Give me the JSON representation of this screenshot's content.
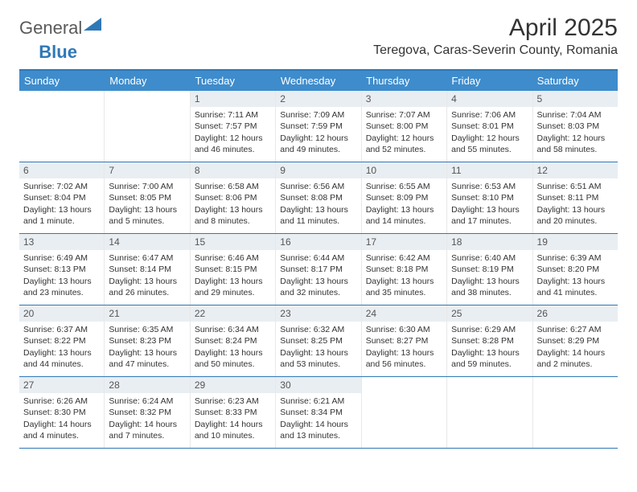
{
  "logo": {
    "text1": "General",
    "text2": "Blue"
  },
  "title": "April 2025",
  "location": "Teregova, Caras-Severin County, Romania",
  "colors": {
    "header_bar": "#3e8ccc",
    "border": "#2f78b7",
    "daynum_bg": "#e9eef2",
    "text": "#333333"
  },
  "weekdays": [
    "Sunday",
    "Monday",
    "Tuesday",
    "Wednesday",
    "Thursday",
    "Friday",
    "Saturday"
  ],
  "weeks": [
    [
      {
        "n": "",
        "sr": "",
        "ss": "",
        "dl": ""
      },
      {
        "n": "",
        "sr": "",
        "ss": "",
        "dl": ""
      },
      {
        "n": "1",
        "sr": "Sunrise: 7:11 AM",
        "ss": "Sunset: 7:57 PM",
        "dl": "Daylight: 12 hours and 46 minutes."
      },
      {
        "n": "2",
        "sr": "Sunrise: 7:09 AM",
        "ss": "Sunset: 7:59 PM",
        "dl": "Daylight: 12 hours and 49 minutes."
      },
      {
        "n": "3",
        "sr": "Sunrise: 7:07 AM",
        "ss": "Sunset: 8:00 PM",
        "dl": "Daylight: 12 hours and 52 minutes."
      },
      {
        "n": "4",
        "sr": "Sunrise: 7:06 AM",
        "ss": "Sunset: 8:01 PM",
        "dl": "Daylight: 12 hours and 55 minutes."
      },
      {
        "n": "5",
        "sr": "Sunrise: 7:04 AM",
        "ss": "Sunset: 8:03 PM",
        "dl": "Daylight: 12 hours and 58 minutes."
      }
    ],
    [
      {
        "n": "6",
        "sr": "Sunrise: 7:02 AM",
        "ss": "Sunset: 8:04 PM",
        "dl": "Daylight: 13 hours and 1 minute."
      },
      {
        "n": "7",
        "sr": "Sunrise: 7:00 AM",
        "ss": "Sunset: 8:05 PM",
        "dl": "Daylight: 13 hours and 5 minutes."
      },
      {
        "n": "8",
        "sr": "Sunrise: 6:58 AM",
        "ss": "Sunset: 8:06 PM",
        "dl": "Daylight: 13 hours and 8 minutes."
      },
      {
        "n": "9",
        "sr": "Sunrise: 6:56 AM",
        "ss": "Sunset: 8:08 PM",
        "dl": "Daylight: 13 hours and 11 minutes."
      },
      {
        "n": "10",
        "sr": "Sunrise: 6:55 AM",
        "ss": "Sunset: 8:09 PM",
        "dl": "Daylight: 13 hours and 14 minutes."
      },
      {
        "n": "11",
        "sr": "Sunrise: 6:53 AM",
        "ss": "Sunset: 8:10 PM",
        "dl": "Daylight: 13 hours and 17 minutes."
      },
      {
        "n": "12",
        "sr": "Sunrise: 6:51 AM",
        "ss": "Sunset: 8:11 PM",
        "dl": "Daylight: 13 hours and 20 minutes."
      }
    ],
    [
      {
        "n": "13",
        "sr": "Sunrise: 6:49 AM",
        "ss": "Sunset: 8:13 PM",
        "dl": "Daylight: 13 hours and 23 minutes."
      },
      {
        "n": "14",
        "sr": "Sunrise: 6:47 AM",
        "ss": "Sunset: 8:14 PM",
        "dl": "Daylight: 13 hours and 26 minutes."
      },
      {
        "n": "15",
        "sr": "Sunrise: 6:46 AM",
        "ss": "Sunset: 8:15 PM",
        "dl": "Daylight: 13 hours and 29 minutes."
      },
      {
        "n": "16",
        "sr": "Sunrise: 6:44 AM",
        "ss": "Sunset: 8:17 PM",
        "dl": "Daylight: 13 hours and 32 minutes."
      },
      {
        "n": "17",
        "sr": "Sunrise: 6:42 AM",
        "ss": "Sunset: 8:18 PM",
        "dl": "Daylight: 13 hours and 35 minutes."
      },
      {
        "n": "18",
        "sr": "Sunrise: 6:40 AM",
        "ss": "Sunset: 8:19 PM",
        "dl": "Daylight: 13 hours and 38 minutes."
      },
      {
        "n": "19",
        "sr": "Sunrise: 6:39 AM",
        "ss": "Sunset: 8:20 PM",
        "dl": "Daylight: 13 hours and 41 minutes."
      }
    ],
    [
      {
        "n": "20",
        "sr": "Sunrise: 6:37 AM",
        "ss": "Sunset: 8:22 PM",
        "dl": "Daylight: 13 hours and 44 minutes."
      },
      {
        "n": "21",
        "sr": "Sunrise: 6:35 AM",
        "ss": "Sunset: 8:23 PM",
        "dl": "Daylight: 13 hours and 47 minutes."
      },
      {
        "n": "22",
        "sr": "Sunrise: 6:34 AM",
        "ss": "Sunset: 8:24 PM",
        "dl": "Daylight: 13 hours and 50 minutes."
      },
      {
        "n": "23",
        "sr": "Sunrise: 6:32 AM",
        "ss": "Sunset: 8:25 PM",
        "dl": "Daylight: 13 hours and 53 minutes."
      },
      {
        "n": "24",
        "sr": "Sunrise: 6:30 AM",
        "ss": "Sunset: 8:27 PM",
        "dl": "Daylight: 13 hours and 56 minutes."
      },
      {
        "n": "25",
        "sr": "Sunrise: 6:29 AM",
        "ss": "Sunset: 8:28 PM",
        "dl": "Daylight: 13 hours and 59 minutes."
      },
      {
        "n": "26",
        "sr": "Sunrise: 6:27 AM",
        "ss": "Sunset: 8:29 PM",
        "dl": "Daylight: 14 hours and 2 minutes."
      }
    ],
    [
      {
        "n": "27",
        "sr": "Sunrise: 6:26 AM",
        "ss": "Sunset: 8:30 PM",
        "dl": "Daylight: 14 hours and 4 minutes."
      },
      {
        "n": "28",
        "sr": "Sunrise: 6:24 AM",
        "ss": "Sunset: 8:32 PM",
        "dl": "Daylight: 14 hours and 7 minutes."
      },
      {
        "n": "29",
        "sr": "Sunrise: 6:23 AM",
        "ss": "Sunset: 8:33 PM",
        "dl": "Daylight: 14 hours and 10 minutes."
      },
      {
        "n": "30",
        "sr": "Sunrise: 6:21 AM",
        "ss": "Sunset: 8:34 PM",
        "dl": "Daylight: 14 hours and 13 minutes."
      },
      {
        "n": "",
        "sr": "",
        "ss": "",
        "dl": ""
      },
      {
        "n": "",
        "sr": "",
        "ss": "",
        "dl": ""
      },
      {
        "n": "",
        "sr": "",
        "ss": "",
        "dl": ""
      }
    ]
  ]
}
